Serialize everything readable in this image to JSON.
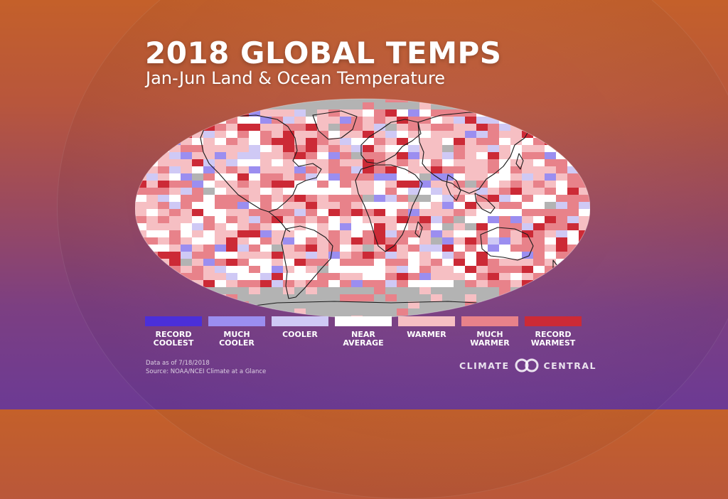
{
  "title": "2018 GLOBAL TEMPS",
  "subtitle": "Jan-Jun Land & Ocean Temperature",
  "legend": [
    {
      "label": "RECORD\nCOOLEST",
      "color": "#4b2fd9"
    },
    {
      "label": "MUCH\nCOOLER",
      "color": "#9b8ef0"
    },
    {
      "label": "COOLER",
      "color": "#cfc9f5"
    },
    {
      "label": "NEAR\nAVERAGE",
      "color": "#ffffff"
    },
    {
      "label": "WARMER",
      "color": "#f6bfc3"
    },
    {
      "label": "MUCH\nWARMER",
      "color": "#e8828a"
    },
    {
      "label": "RECORD\nWARMEST",
      "color": "#cc2a36"
    }
  ],
  "footnote": {
    "date": "Data as of 7/18/2018",
    "source": "Source: NOAA/NCEI Climate at a Glance"
  },
  "logo": {
    "left": "CLIMATE",
    "right": "CENTRAL"
  },
  "colors": {
    "no_data": "#b3b3b3",
    "coastline": "#1a1a1a"
  }
}
